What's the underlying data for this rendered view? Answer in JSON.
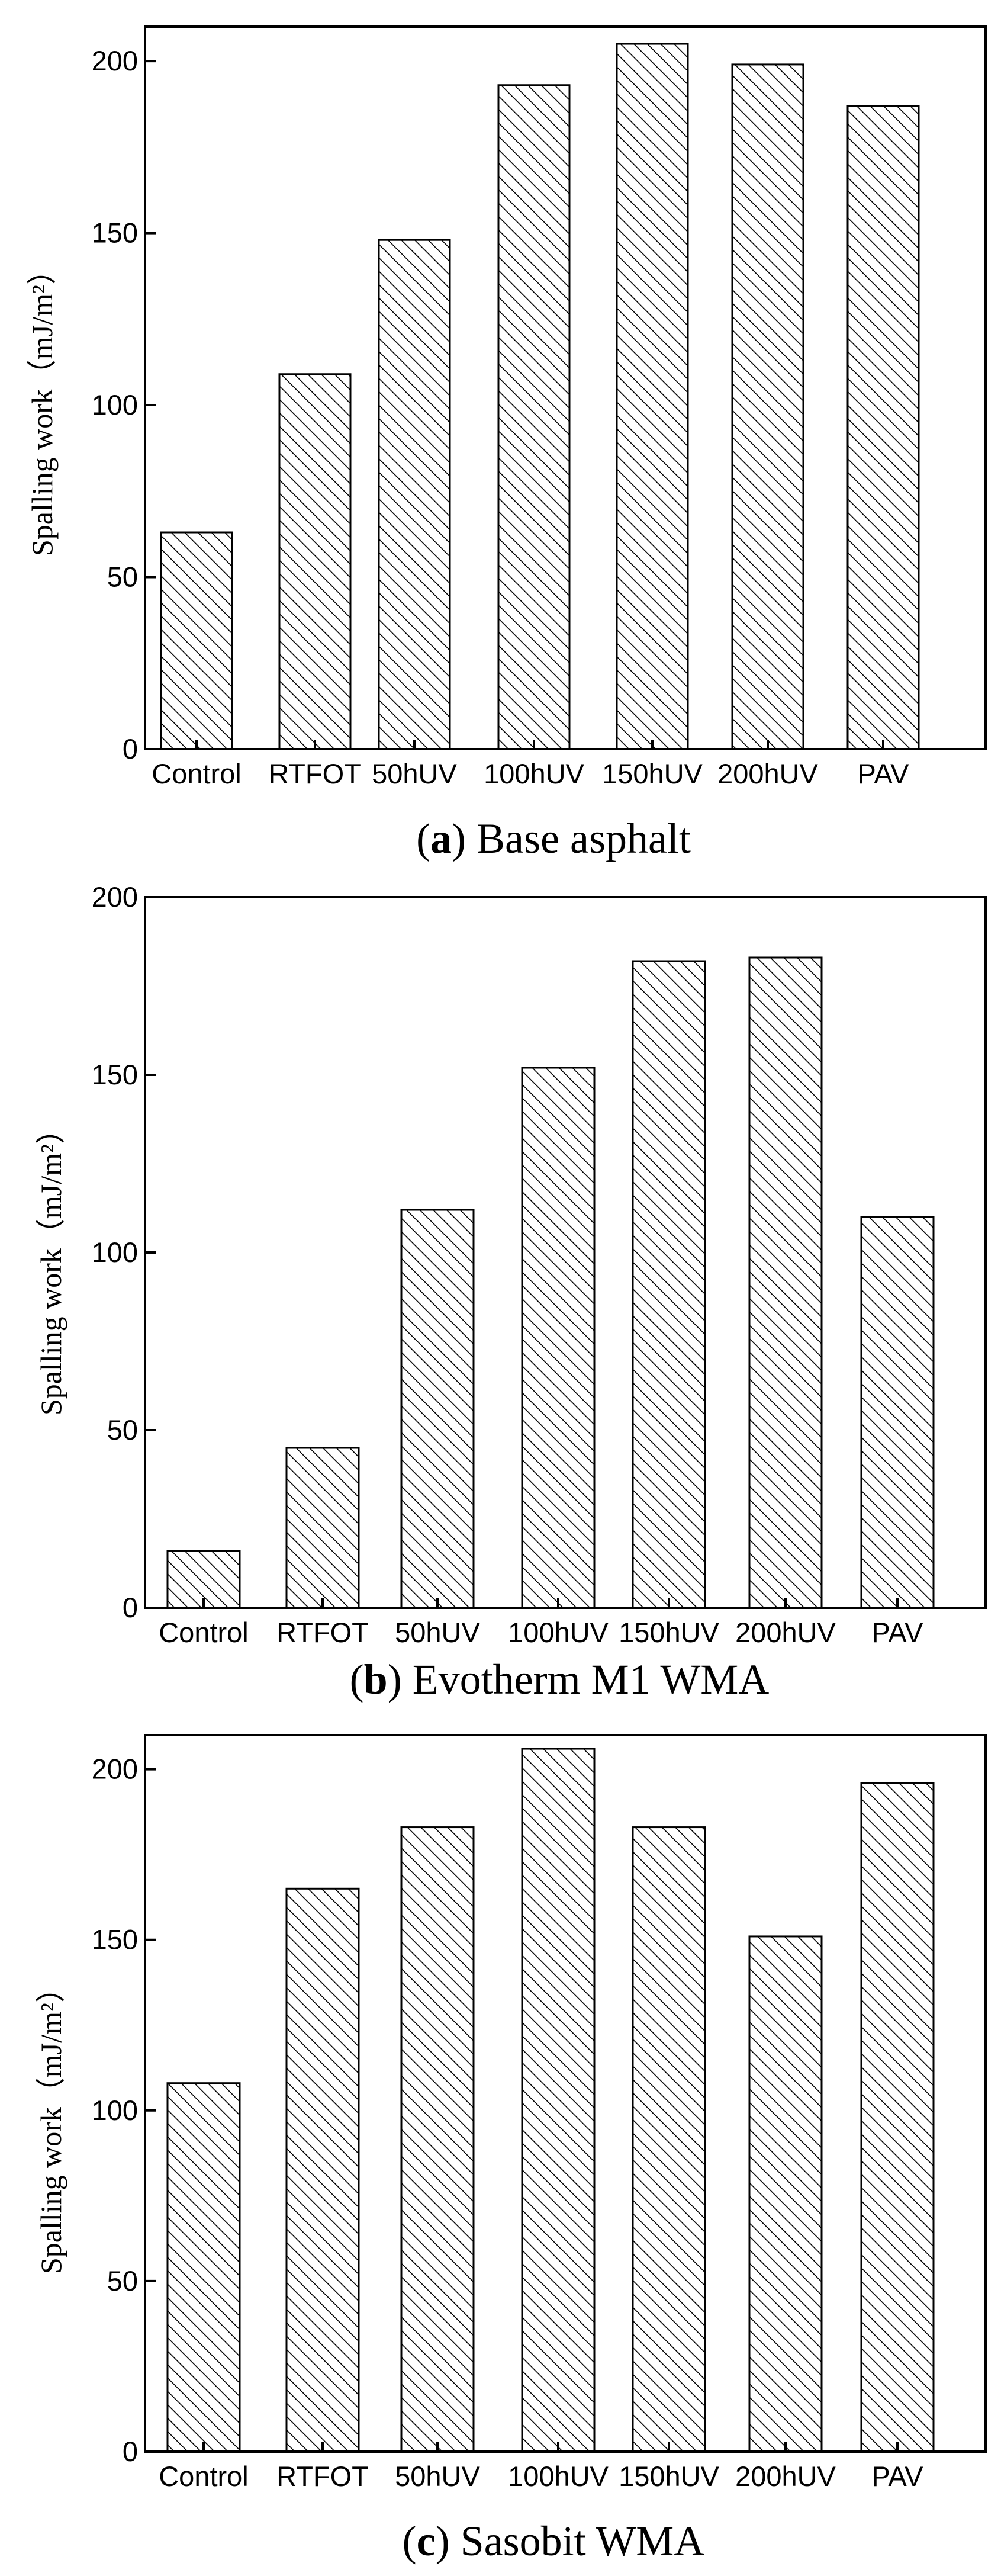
{
  "chart_data": [
    {
      "type": "bar",
      "categories": [
        "Control",
        "RTFOT",
        "50hUV",
        "100hUV",
        "150hUV",
        "200hUV",
        "PAV"
      ],
      "values": [
        63,
        109,
        148,
        193,
        205,
        199,
        187
      ],
      "ylabel": "Spalling work（mJ/m²）",
      "xlabel": "",
      "yticks": [
        0,
        50,
        100,
        150,
        200
      ],
      "ylim": [
        0,
        210
      ],
      "caption_letter": "a",
      "caption_rest": " Base asphalt",
      "grid": false,
      "bar_fill": "diagonal-hatch"
    },
    {
      "type": "bar",
      "categories": [
        "Control",
        "RTFOT",
        "50hUV",
        "100hUV",
        "150hUV",
        "200hUV",
        "PAV"
      ],
      "values": [
        16,
        45,
        112,
        152,
        182,
        183,
        110
      ],
      "ylabel": "Spalling work（mJ/m²）",
      "xlabel": "",
      "yticks": [
        0,
        50,
        100,
        150,
        200
      ],
      "ylim": [
        0,
        200
      ],
      "caption_letter": "b",
      "caption_rest": " Evotherm M1 WMA",
      "grid": false,
      "bar_fill": "diagonal-hatch"
    },
    {
      "type": "bar",
      "categories": [
        "Control",
        "RTFOT",
        "50hUV",
        "100hUV",
        "150hUV",
        "200hUV",
        "PAV"
      ],
      "values": [
        108,
        165,
        183,
        206,
        183,
        151,
        196
      ],
      "ylabel": "Spalling work（mJ/m²）",
      "xlabel": "",
      "yticks": [
        0,
        50,
        100,
        150,
        200
      ],
      "ylim": [
        0,
        210
      ],
      "caption_letter": "c",
      "caption_rest": " Sasobit WMA",
      "grid": false,
      "bar_fill": "diagonal-hatch"
    }
  ],
  "colors": {
    "bar_stroke": "#000000",
    "hatch": "#000000",
    "background": "#ffffff"
  }
}
